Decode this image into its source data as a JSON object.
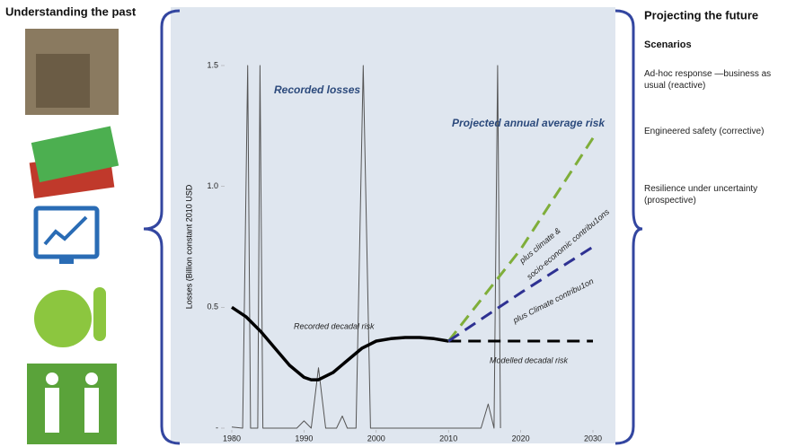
{
  "left": {
    "title": "Understanding the past"
  },
  "right": {
    "title": "Projecting the future",
    "subtitle": "Scenarios",
    "scenarios": [
      "Ad-hoc response —business as usual (reactive)",
      "Engineered safety (corrective)",
      "Resilience under uncertainty (prospective)"
    ]
  },
  "chart_data": {
    "type": "line",
    "y_label": "Losses (Billion constant 2010 USD",
    "xlim": [
      1980,
      2030
    ],
    "xticks": [
      1980,
      1990,
      2000,
      2010,
      2020,
      2030
    ],
    "ylim": [
      0,
      1.5
    ],
    "yticks": [
      {
        "value": 0,
        "label": "-"
      },
      0.5,
      {
        "value": 1,
        "label": "1.0"
      },
      1.5
    ],
    "series": [
      {
        "name": "Recorded losses",
        "color": "#555555",
        "width": 1,
        "dash": false,
        "x": [
          1980,
          1981.5,
          1982.2,
          1982.6,
          1983.6,
          1983.9,
          1984.3,
          1989,
          1990,
          1991,
          1992,
          1993,
          1994.5,
          1995.3,
          1996,
          1997.2,
          1998.2,
          1999.2,
          2000,
          2014.5,
          2015.5,
          2016.3,
          2016.8,
          2017.2
        ],
        "values": [
          0.005,
          0,
          1.5,
          0,
          0,
          1.5,
          0,
          0,
          0.03,
          0,
          0.25,
          0,
          0,
          0.05,
          0,
          0,
          1.5,
          0,
          0,
          0,
          0.1,
          0,
          1.5,
          0
        ]
      },
      {
        "name": "Recorded decadal risk",
        "color": "#000000",
        "width": 3.5,
        "dash": false,
        "x": [
          1980,
          1982,
          1984,
          1986,
          1988,
          1990,
          1991,
          1992,
          1994,
          1996,
          1998,
          2000,
          2002,
          2004,
          2006,
          2008,
          2010
        ],
        "values": [
          0.5,
          0.46,
          0.4,
          0.33,
          0.26,
          0.21,
          0.2,
          0.2,
          0.23,
          0.28,
          0.33,
          0.36,
          0.37,
          0.375,
          0.375,
          0.37,
          0.36
        ]
      },
      {
        "name": "Modelled decadal risk",
        "color": "#000000",
        "width": 3,
        "dash": true,
        "x": [
          2010,
          2030
        ],
        "values": [
          0.36,
          0.36
        ]
      },
      {
        "color": "#7fae3a",
        "width": 3,
        "dash": true,
        "x": [
          2010,
          2020,
          2030
        ],
        "values": [
          0.36,
          0.74,
          1.2
        ]
      },
      {
        "color": "#2e3192",
        "width": 3,
        "dash": true,
        "x": [
          2010,
          2020,
          2030
        ],
        "values": [
          0.36,
          0.56,
          0.75
        ]
      }
    ],
    "annotations": [
      "Projected annual average risk",
      "plus climate &",
      "socio-economic contribu1ons",
      "plus Climate contribu1on"
    ]
  }
}
